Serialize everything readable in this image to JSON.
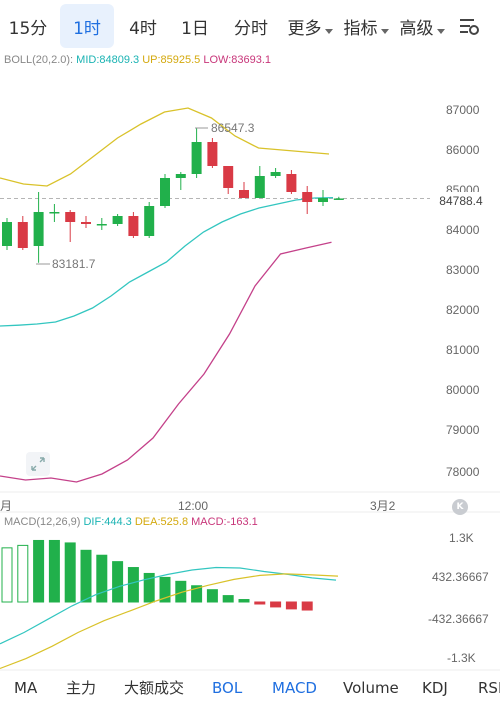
{
  "tabs": [
    {
      "label": "15分",
      "active": false
    },
    {
      "label": "1时",
      "active": true
    },
    {
      "label": "4时",
      "active": false
    },
    {
      "label": "1日",
      "active": false
    },
    {
      "label": "分时",
      "active": false
    },
    {
      "label": "更多",
      "active": false
    },
    {
      "label": "指标",
      "active": false
    },
    {
      "label": "高级",
      "active": false
    }
  ],
  "boll_legend": {
    "name": "BOLL(20,2.0):",
    "mid": "MID:84809.3",
    "up": "UP:85925.5",
    "low": "LOW:83693.1"
  },
  "macd_legend": {
    "name": "MACD(12,26,9)",
    "dif": "DIF:444.3",
    "dea": "DEA:525.8",
    "macd": "MACD:-163.1"
  },
  "price_axis": [
    "87000",
    "86000",
    "85000",
    "84000",
    "83000",
    "82000",
    "81000",
    "80000",
    "79000",
    "78000"
  ],
  "macd_axis": [
    "1.3K",
    "432.36667",
    "-432.36667",
    "-1.3K"
  ],
  "time_axis": {
    "left": "月",
    "mid": "12:00",
    "right": "3月2"
  },
  "annotations": {
    "high": "86547.3",
    "low": "83181.7"
  },
  "current_price": "84788.4",
  "bottom_tabs": [
    {
      "label": "MA",
      "active": false
    },
    {
      "label": "主力",
      "active": false
    },
    {
      "label": "大额成交",
      "active": false
    },
    {
      "label": "BOL",
      "active": true
    },
    {
      "label": "MACD",
      "active": true
    },
    {
      "label": "Volume",
      "active": false
    },
    {
      "label": "KDJ",
      "active": false
    },
    {
      "label": "RSI",
      "active": false
    }
  ],
  "colors": {
    "up": "#21b04b",
    "down": "#d93a45",
    "mid_line": "#33c6c0",
    "upper_line": "#d9c22a",
    "lower_line": "#c4418a",
    "active_tab": "#1f6fe0"
  },
  "icons": {
    "settings": "chart-settings-icon",
    "expand": "expand-arrows-icon",
    "logo": "k-logo-icon"
  },
  "chart_data": {
    "type": "candlestick",
    "interval": "1h",
    "ylim": [
      77500,
      87600
    ],
    "candles": [
      {
        "o": 83600,
        "h": 84300,
        "l": 83500,
        "c": 84200
      },
      {
        "o": 84200,
        "h": 84350,
        "l": 83500,
        "c": 83550
      },
      {
        "o": 83600,
        "h": 84950,
        "l": 83181.7,
        "c": 84450
      },
      {
        "o": 84450,
        "h": 84650,
        "l": 84200,
        "c": 84450
      },
      {
        "o": 84450,
        "h": 84500,
        "l": 83700,
        "c": 84200
      },
      {
        "o": 84200,
        "h": 84350,
        "l": 84050,
        "c": 84150
      },
      {
        "o": 84150,
        "h": 84300,
        "l": 84000,
        "c": 84150
      },
      {
        "o": 84150,
        "h": 84400,
        "l": 84100,
        "c": 84350
      },
      {
        "o": 84350,
        "h": 84450,
        "l": 83800,
        "c": 83850
      },
      {
        "o": 83850,
        "h": 84700,
        "l": 83800,
        "c": 84600
      },
      {
        "o": 84600,
        "h": 85400,
        "l": 84550,
        "c": 85300
      },
      {
        "o": 85300,
        "h": 85450,
        "l": 85000,
        "c": 85400
      },
      {
        "o": 85400,
        "h": 86547.3,
        "l": 85300,
        "c": 86200
      },
      {
        "o": 86200,
        "h": 86300,
        "l": 85550,
        "c": 85600
      },
      {
        "o": 85600,
        "h": 85600,
        "l": 84900,
        "c": 85050
      },
      {
        "o": 85000,
        "h": 85200,
        "l": 84800,
        "c": 84800
      },
      {
        "o": 84800,
        "h": 85600,
        "l": 84800,
        "c": 85350
      },
      {
        "o": 85350,
        "h": 85550,
        "l": 85300,
        "c": 85450
      },
      {
        "o": 85400,
        "h": 85500,
        "l": 84900,
        "c": 84950
      },
      {
        "o": 84950,
        "h": 85100,
        "l": 84400,
        "c": 84700
      },
      {
        "o": 84700,
        "h": 85000,
        "l": 84600,
        "c": 84800
      },
      {
        "o": 84780,
        "h": 84830,
        "l": 84760,
        "c": 84788.4
      }
    ],
    "boll_mid": [
      81600,
      81620,
      81650,
      81700,
      81850,
      82050,
      82350,
      82700,
      82950,
      83200,
      83600,
      83950,
      84200,
      84400,
      84550,
      84650,
      84750,
      84800,
      84809.3
    ],
    "boll_upper": [
      85300,
      85150,
      85100,
      85400,
      85850,
      86300,
      86650,
      86950,
      87050,
      86800,
      86350,
      86050,
      86000,
      85950,
      85900
    ],
    "boll_lower": [
      77850,
      77750,
      77800,
      77700,
      77900,
      78250,
      78800,
      79650,
      80400,
      81400,
      82600,
      83400,
      83550,
      83693.1
    ],
    "macd_hist": [
      1100,
      1150,
      1250,
      1250,
      1200,
      1050,
      950,
      820,
      700,
      580,
      500,
      420,
      330,
      250,
      130,
      50,
      -20,
      -100,
      -140,
      -163.1
    ],
    "macd_dif": [
      -850,
      -620,
      -350,
      -80,
      150,
      320,
      450,
      560,
      650,
      700,
      690,
      620,
      560,
      490,
      444.3
    ],
    "macd_dea": [
      -1350,
      -1150,
      -900,
      -620,
      -380,
      -180,
      20,
      200,
      340,
      460,
      540,
      570,
      550,
      525.8
    ]
  }
}
